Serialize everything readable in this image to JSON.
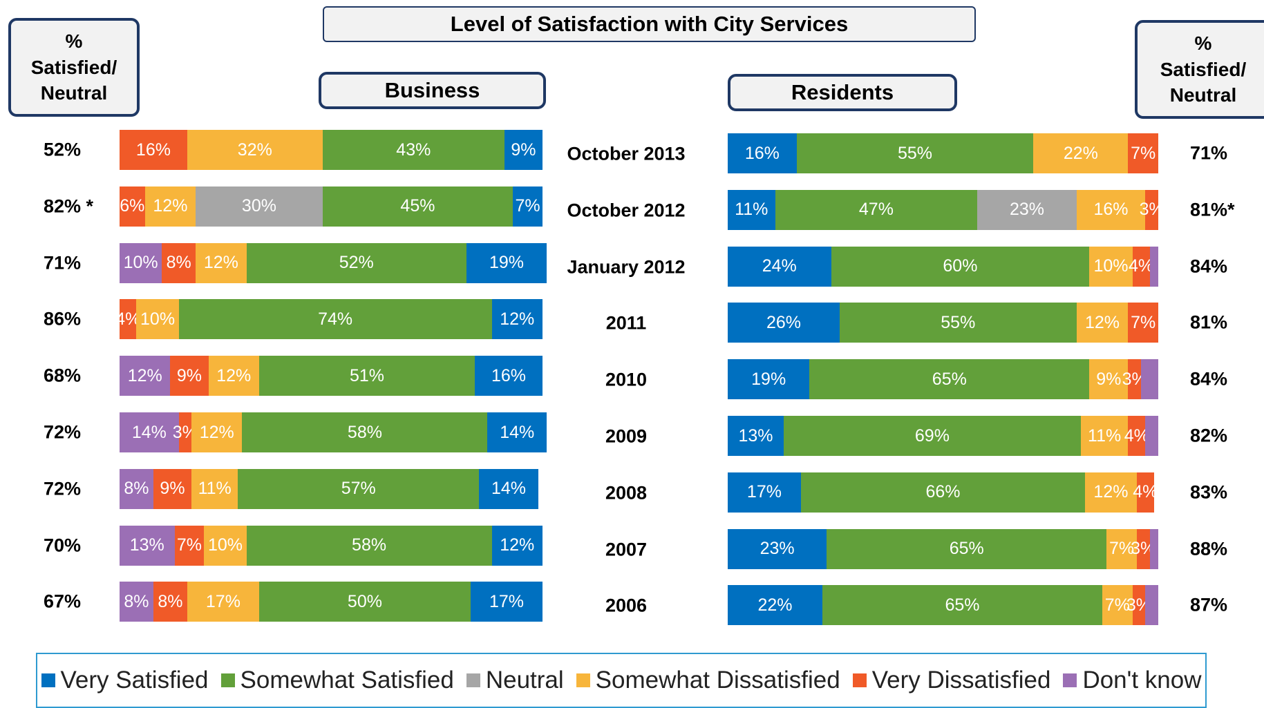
{
  "title": "Level of Satisfaction with City Services",
  "chart_data": [
    {
      "type": "bar",
      "orientation": "horizontal",
      "stacked": true,
      "reverse_stack": true,
      "title": "Business",
      "summary_title": "% Satisfied/ Neutral",
      "summary": [
        "52%",
        "82% *",
        "71%",
        "86%",
        "68%",
        "72%",
        "72%",
        "70%",
        "67%"
      ],
      "categories": [
        "October 2013",
        "October 2012",
        "January 2012",
        "2011",
        "2010",
        "2009",
        "2008",
        "2007",
        "2006"
      ],
      "xlim": [
        0,
        100
      ],
      "series": [
        {
          "name": "Very Satisfied",
          "color": "#0070c0",
          "values": [
            9,
            7,
            19,
            12,
            16,
            14,
            14,
            12,
            17
          ],
          "value_labels": [
            "9%",
            "7%",
            "19%",
            "12%",
            "16%",
            "14%",
            "14%",
            "12%",
            "17%"
          ]
        },
        {
          "name": "Somewhat Satisfied",
          "color": "#62a03a",
          "values": [
            43,
            45,
            52,
            74,
            51,
            58,
            57,
            58,
            50
          ],
          "value_labels": [
            "43%",
            "45%",
            "52%",
            "74%",
            "51%",
            "58%",
            "57%",
            "58%",
            "50%"
          ]
        },
        {
          "name": "Neutral",
          "color": "#a6a6a6",
          "values": [
            null,
            30,
            null,
            null,
            null,
            null,
            null,
            null,
            null
          ],
          "value_labels": [
            null,
            "30%",
            null,
            null,
            null,
            null,
            null,
            null,
            null
          ]
        },
        {
          "name": "Somewhat Dissatisfied",
          "color": "#f7b53b",
          "values": [
            32,
            12,
            12,
            10,
            12,
            12,
            11,
            10,
            17
          ],
          "value_labels": [
            "32%",
            "12%",
            "12%",
            "10%",
            "12%",
            "12%",
            "11%",
            "10%",
            "17%"
          ]
        },
        {
          "name": "Very Dissatisfied",
          "color": "#f05a28",
          "values": [
            16,
            6,
            8,
            4,
            9,
            3,
            9,
            7,
            8
          ],
          "value_labels": [
            "16%",
            "6%",
            "8%",
            "4%",
            "9%",
            "3%",
            "9%",
            "7%",
            "8%"
          ]
        },
        {
          "name": "Don't know",
          "color": "#9b6fb5",
          "values": [
            null,
            null,
            10,
            null,
            12,
            14,
            8,
            13,
            8
          ],
          "value_labels": [
            null,
            null,
            "10%",
            null,
            "12%",
            "14%",
            "8%",
            "13%",
            "8%"
          ]
        }
      ]
    },
    {
      "type": "bar",
      "orientation": "horizontal",
      "stacked": true,
      "reverse_stack": false,
      "title": "Residents",
      "summary_title": "% Satisfied/ Neutral",
      "summary": [
        "71%",
        "81%*",
        "84%",
        "81%",
        "84%",
        "82%",
        "83%",
        "88%",
        "87%"
      ],
      "xlim": [
        0,
        100
      ],
      "series": [
        {
          "name": "Very Satisfied",
          "color": "#0070c0",
          "values": [
            16,
            11,
            24,
            26,
            19,
            13,
            17,
            23,
            22
          ],
          "value_labels": [
            "16%",
            "11%",
            "24%",
            "26%",
            "19%",
            "13%",
            "17%",
            "23%",
            "22%"
          ]
        },
        {
          "name": "Somewhat Satisfied",
          "color": "#62a03a",
          "values": [
            55,
            47,
            60,
            55,
            65,
            69,
            66,
            65,
            65
          ],
          "value_labels": [
            "55%",
            "47%",
            "60%",
            "55%",
            "65%",
            "69%",
            "66%",
            "65%",
            "65%"
          ]
        },
        {
          "name": "Neutral",
          "color": "#a6a6a6",
          "values": [
            null,
            23,
            null,
            null,
            null,
            null,
            null,
            null,
            null
          ],
          "value_labels": [
            null,
            "23%",
            null,
            null,
            null,
            null,
            null,
            null,
            null
          ]
        },
        {
          "name": "Somewhat Dissatisfied",
          "color": "#f7b53b",
          "values": [
            22,
            16,
            10,
            12,
            9,
            11,
            12,
            7,
            7
          ],
          "value_labels": [
            "22%",
            "16%",
            "10%",
            "12%",
            "9%",
            "11%",
            "12%",
            "7%",
            "7%"
          ]
        },
        {
          "name": "Very Dissatisfied",
          "color": "#f05a28",
          "values": [
            7,
            3,
            4,
            7,
            3,
            4,
            4,
            3,
            3
          ],
          "value_labels": [
            "7%",
            "3%",
            "4%",
            "7%",
            "3%",
            "4%",
            "4%",
            "3%",
            "3%"
          ]
        },
        {
          "name": "Don't know",
          "color": "#9b6fb5",
          "values": [
            null,
            null,
            2,
            null,
            4,
            3,
            null,
            2,
            3
          ],
          "value_labels": [
            null,
            null,
            null,
            null,
            null,
            null,
            null,
            null,
            null
          ]
        }
      ]
    }
  ]
}
